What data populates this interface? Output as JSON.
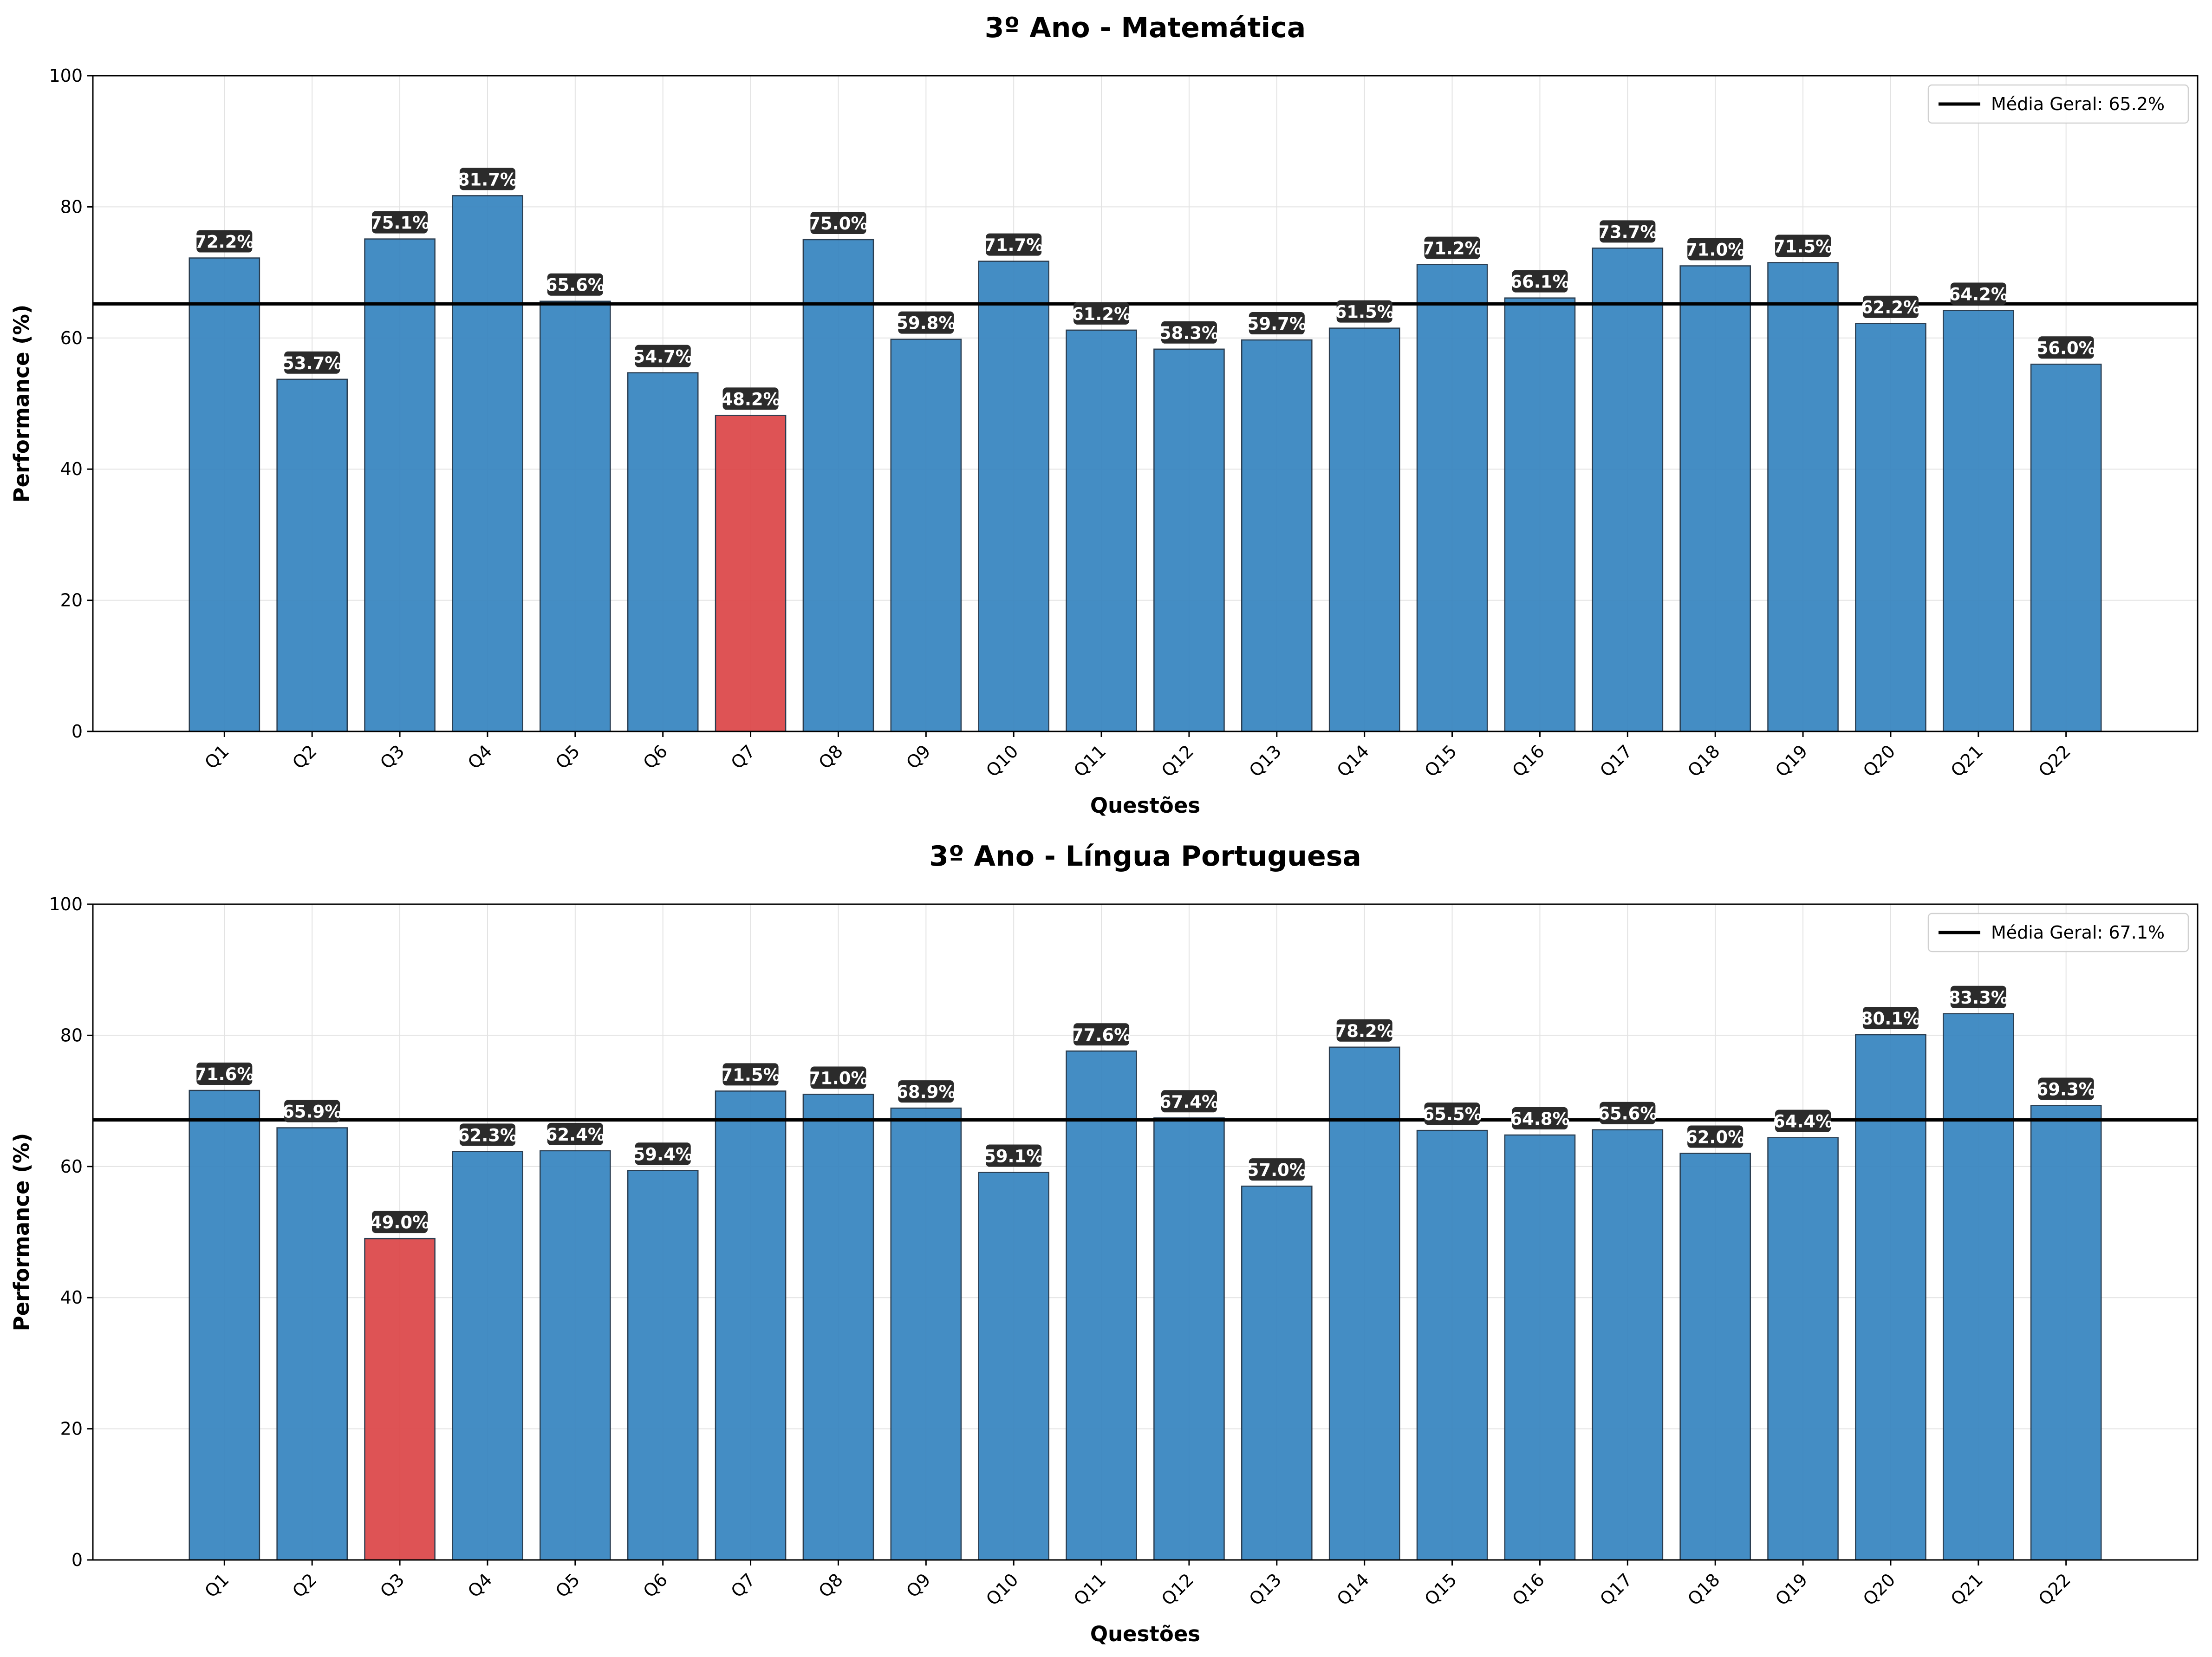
{
  "chart_data": [
    {
      "type": "bar",
      "title": "3º Ano - Matemática",
      "xlabel": "Questões",
      "ylabel": "Performance (%)",
      "ylim": [
        0,
        100
      ],
      "yticks": [
        "0",
        "20",
        "40",
        "60",
        "80",
        "100"
      ],
      "grid": true,
      "legend_position": "top-right",
      "categories": [
        "Q1",
        "Q2",
        "Q3",
        "Q4",
        "Q5",
        "Q6",
        "Q7",
        "Q8",
        "Q9",
        "Q10",
        "Q11",
        "Q12",
        "Q13",
        "Q14",
        "Q15",
        "Q16",
        "Q17",
        "Q18",
        "Q19",
        "Q20",
        "Q21",
        "Q22"
      ],
      "values": [
        72.2,
        53.7,
        75.1,
        81.7,
        65.6,
        54.7,
        48.2,
        75.0,
        59.8,
        71.7,
        61.2,
        58.3,
        59.7,
        61.5,
        71.2,
        66.1,
        73.7,
        71.0,
        71.5,
        62.2,
        64.2,
        56.0
      ],
      "value_labels": [
        "72.2%",
        "53.7%",
        "75.1%",
        "81.7%",
        "65.6%",
        "54.7%",
        "48.2%",
        "75.0%",
        "59.8%",
        "71.7%",
        "61.2%",
        "58.3%",
        "59.7%",
        "61.5%",
        "71.2%",
        "66.1%",
        "73.7%",
        "71.0%",
        "71.5%",
        "62.2%",
        "64.2%",
        "56.0%"
      ],
      "highlight_index": 6,
      "reference_line": {
        "value": 65.2,
        "label": "Média Geral: 65.2%"
      },
      "colors": {
        "bar": "#3b87c1",
        "highlight": "#dd4a4c",
        "reference": "#000000",
        "label_bg": "#2b2b2b"
      }
    },
    {
      "type": "bar",
      "title": "3º Ano - Língua Portuguesa",
      "xlabel": "Questões",
      "ylabel": "Performance (%)",
      "ylim": [
        0,
        100
      ],
      "yticks": [
        "0",
        "20",
        "40",
        "60",
        "80",
        "100"
      ],
      "grid": true,
      "legend_position": "top-right",
      "categories": [
        "Q1",
        "Q2",
        "Q3",
        "Q4",
        "Q5",
        "Q6",
        "Q7",
        "Q8",
        "Q9",
        "Q10",
        "Q11",
        "Q12",
        "Q13",
        "Q14",
        "Q15",
        "Q16",
        "Q17",
        "Q18",
        "Q19",
        "Q20",
        "Q21",
        "Q22"
      ],
      "values": [
        71.6,
        65.9,
        49.0,
        62.3,
        62.4,
        59.4,
        71.5,
        71.0,
        68.9,
        59.1,
        77.6,
        67.4,
        57.0,
        78.2,
        65.5,
        64.8,
        65.6,
        62.0,
        64.4,
        80.1,
        83.3,
        69.3
      ],
      "value_labels": [
        "71.6%",
        "65.9%",
        "49.0%",
        "62.3%",
        "62.4%",
        "59.4%",
        "71.5%",
        "71.0%",
        "68.9%",
        "59.1%",
        "77.6%",
        "67.4%",
        "57.0%",
        "78.2%",
        "65.5%",
        "64.8%",
        "65.6%",
        "62.0%",
        "64.4%",
        "80.1%",
        "83.3%",
        "69.3%"
      ],
      "highlight_index": 2,
      "reference_line": {
        "value": 67.1,
        "label": "Média Geral: 67.1%"
      },
      "colors": {
        "bar": "#3b87c1",
        "highlight": "#dd4a4c",
        "reference": "#000000",
        "label_bg": "#2b2b2b"
      }
    }
  ]
}
